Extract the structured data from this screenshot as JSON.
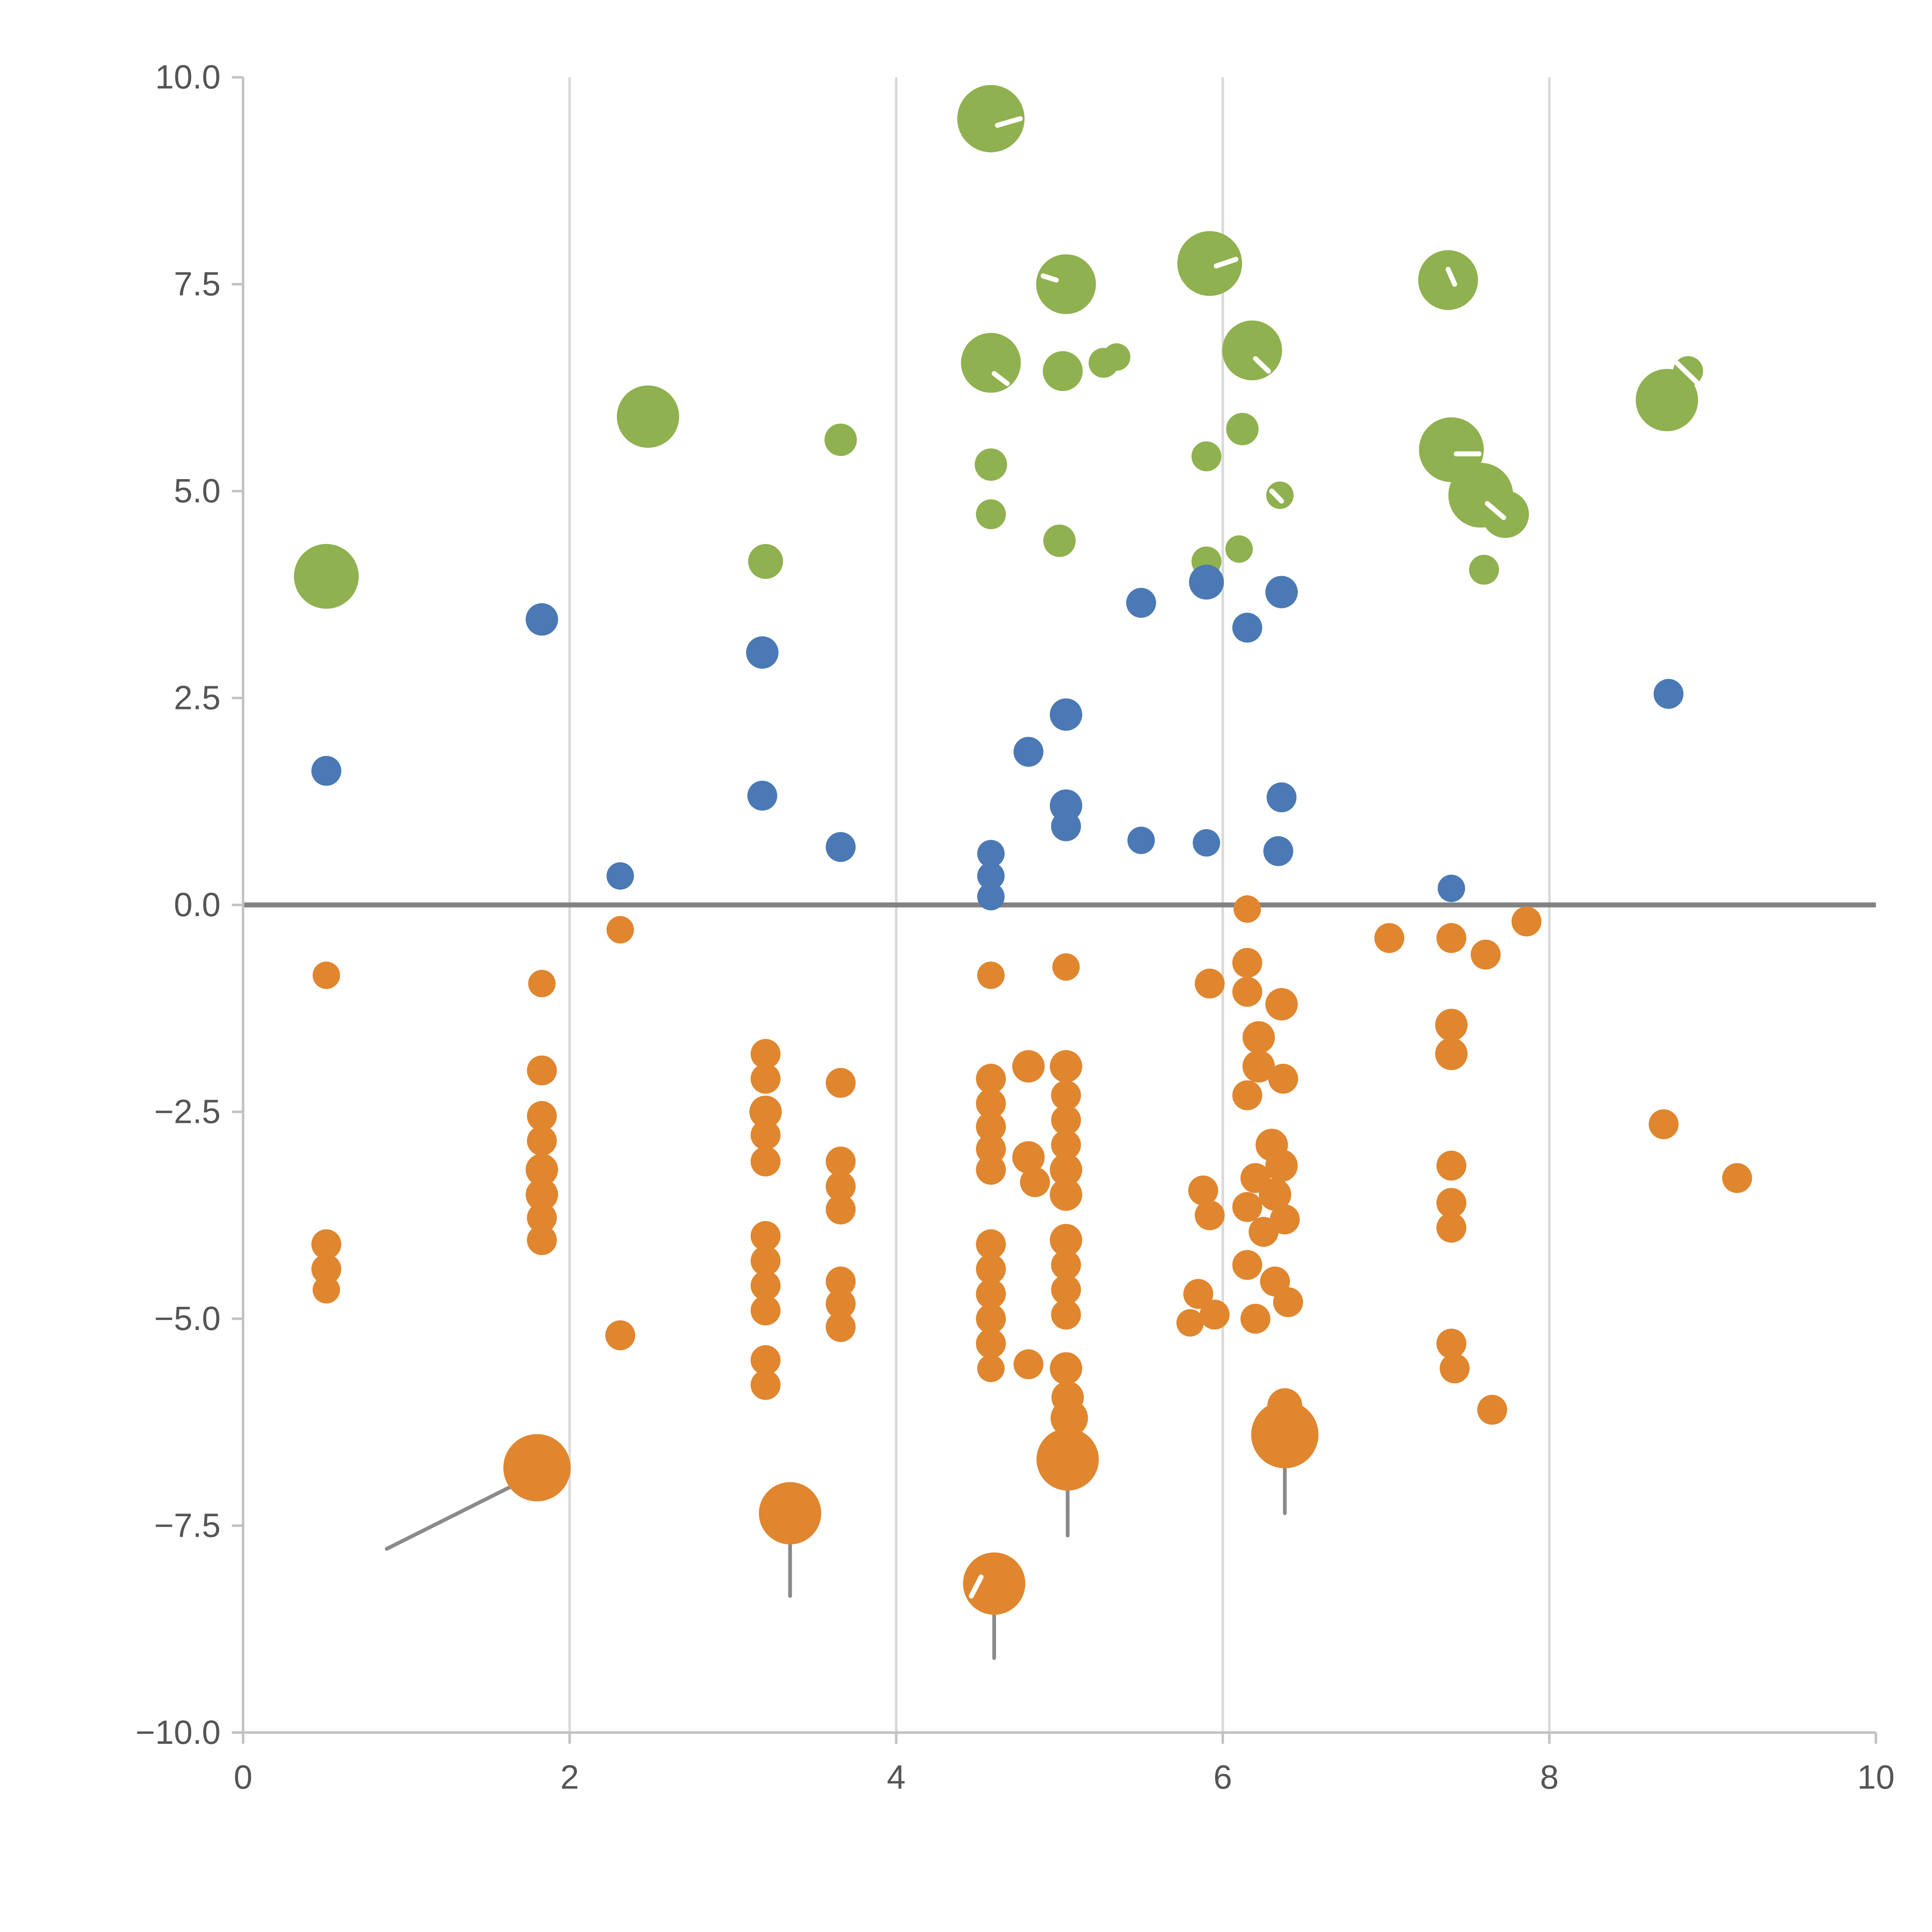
{
  "chart_data": {
    "type": "scatter",
    "title": "",
    "xlabel": "",
    "ylabel": "",
    "xlim": [
      0,
      10
    ],
    "ylim": [
      -10,
      10
    ],
    "grid": "vertical-only",
    "legend": "none",
    "x_ticks": [
      0,
      2,
      4,
      6,
      8,
      10
    ],
    "x_tick_labels": [
      "0",
      "2",
      "4",
      "6",
      "8",
      "10"
    ],
    "y_ticks": [
      -10,
      -7.5,
      -5,
      -2.5,
      0,
      2.5,
      5,
      7.5,
      10
    ],
    "y_tick_labels": [
      "−10.0",
      "−7.5",
      "−5.0",
      "−2.5",
      "0.0",
      "2.5",
      "5.0",
      "7.5",
      "10.0"
    ],
    "gridline_x_positions": [
      2,
      4,
      6,
      8
    ],
    "zero_line_y": 0,
    "colors": {
      "green": "#8fb14f",
      "blue": "#4a79b5",
      "orange": "#e0862f",
      "grid": "#d9d9d9",
      "zero_line": "#828282",
      "axis": "#c2c2c2",
      "tick_label": "#555555",
      "annotation_line": "#8a8a8a",
      "white_mark": "#ffffff"
    },
    "series": [
      {
        "name": "green",
        "points": [
          [
            4.58,
            9.5,
            27
          ],
          [
            5.04,
            7.5,
            24
          ],
          [
            5.92,
            7.75,
            26
          ],
          [
            7.38,
            7.55,
            24
          ],
          [
            4.58,
            6.55,
            24
          ],
          [
            5.02,
            6.45,
            16
          ],
          [
            5.27,
            6.55,
            12
          ],
          [
            5.35,
            6.62,
            11
          ],
          [
            6.18,
            6.7,
            24
          ],
          [
            8.72,
            6.1,
            25
          ],
          [
            8.85,
            6.45,
            12
          ],
          [
            2.48,
            5.9,
            25
          ],
          [
            3.66,
            5.62,
            13
          ],
          [
            4.58,
            5.32,
            13
          ],
          [
            6.12,
            5.75,
            13
          ],
          [
            5.9,
            5.42,
            12
          ],
          [
            7.4,
            5.5,
            26
          ],
          [
            7.58,
            4.95,
            26
          ],
          [
            7.73,
            4.72,
            19
          ],
          [
            4.58,
            4.72,
            12
          ],
          [
            5.0,
            4.4,
            13
          ],
          [
            3.2,
            4.15,
            14
          ],
          [
            0.51,
            3.97,
            26
          ],
          [
            6.35,
            4.95,
            11
          ],
          [
            5.9,
            4.15,
            12
          ],
          [
            6.1,
            4.3,
            11
          ],
          [
            7.6,
            4.05,
            12
          ]
        ]
      },
      {
        "name": "blue",
        "points": [
          [
            1.83,
            3.45,
            13
          ],
          [
            3.18,
            3.05,
            13
          ],
          [
            5.9,
            3.9,
            14
          ],
          [
            5.5,
            3.65,
            12
          ],
          [
            6.15,
            3.35,
            12
          ],
          [
            6.36,
            3.78,
            13
          ],
          [
            8.73,
            2.55,
            12
          ],
          [
            5.04,
            2.3,
            13
          ],
          [
            4.81,
            1.85,
            12
          ],
          [
            0.51,
            1.62,
            12
          ],
          [
            5.04,
            1.2,
            13
          ],
          [
            5.04,
            0.95,
            12
          ],
          [
            3.18,
            1.32,
            12
          ],
          [
            6.36,
            1.3,
            12
          ],
          [
            3.66,
            0.7,
            12
          ],
          [
            5.5,
            0.78,
            11
          ],
          [
            5.9,
            0.75,
            11
          ],
          [
            6.34,
            0.65,
            12
          ],
          [
            4.58,
            0.62,
            11
          ],
          [
            4.58,
            0.35,
            11
          ],
          [
            4.58,
            0.1,
            11
          ],
          [
            2.31,
            0.35,
            11
          ],
          [
            7.4,
            0.2,
            11
          ]
        ]
      },
      {
        "name": "orange",
        "points": [
          [
            0.51,
            -0.85,
            11
          ],
          [
            0.51,
            -4.1,
            12
          ],
          [
            0.51,
            -4.4,
            12
          ],
          [
            0.51,
            -4.65,
            11
          ],
          [
            1.83,
            -0.95,
            11
          ],
          [
            1.83,
            -2.0,
            12
          ],
          [
            1.83,
            -2.55,
            12
          ],
          [
            1.83,
            -2.85,
            12
          ],
          [
            1.83,
            -3.2,
            13
          ],
          [
            1.83,
            -3.5,
            13
          ],
          [
            1.83,
            -3.78,
            12
          ],
          [
            1.83,
            -4.05,
            12
          ],
          [
            1.8,
            -6.8,
            27
          ],
          [
            2.31,
            -0.3,
            11
          ],
          [
            2.31,
            -5.2,
            12
          ],
          [
            3.2,
            -1.8,
            12
          ],
          [
            3.2,
            -2.1,
            12
          ],
          [
            3.2,
            -2.5,
            13
          ],
          [
            3.2,
            -2.78,
            12
          ],
          [
            3.2,
            -3.1,
            12
          ],
          [
            3.2,
            -4.0,
            12
          ],
          [
            3.2,
            -4.3,
            12
          ],
          [
            3.2,
            -4.6,
            12
          ],
          [
            3.2,
            -4.9,
            12
          ],
          [
            3.2,
            -5.5,
            12
          ],
          [
            3.2,
            -5.8,
            12
          ],
          [
            3.35,
            -7.35,
            25
          ],
          [
            3.66,
            -2.15,
            12
          ],
          [
            3.66,
            -3.1,
            12
          ],
          [
            3.66,
            -3.4,
            12
          ],
          [
            3.66,
            -3.68,
            12
          ],
          [
            3.66,
            -4.55,
            12
          ],
          [
            3.66,
            -4.82,
            12
          ],
          [
            3.66,
            -5.1,
            12
          ],
          [
            4.58,
            -0.85,
            11
          ],
          [
            4.58,
            -2.1,
            12
          ],
          [
            4.58,
            -2.4,
            12
          ],
          [
            4.58,
            -2.68,
            12
          ],
          [
            4.58,
            -2.95,
            12
          ],
          [
            4.58,
            -3.2,
            12
          ],
          [
            4.58,
            -4.1,
            12
          ],
          [
            4.58,
            -4.4,
            12
          ],
          [
            4.58,
            -4.7,
            12
          ],
          [
            4.58,
            -5.0,
            12
          ],
          [
            4.58,
            -5.3,
            12
          ],
          [
            4.58,
            -5.6,
            11
          ],
          [
            4.6,
            -8.2,
            25
          ],
          [
            4.81,
            -1.95,
            13
          ],
          [
            4.81,
            -3.05,
            13
          ],
          [
            4.85,
            -3.35,
            12
          ],
          [
            4.81,
            -5.55,
            12
          ],
          [
            5.04,
            -0.75,
            11
          ],
          [
            5.04,
            -1.95,
            13
          ],
          [
            5.04,
            -2.3,
            12
          ],
          [
            5.04,
            -2.6,
            12
          ],
          [
            5.04,
            -2.9,
            12
          ],
          [
            5.04,
            -3.2,
            13
          ],
          [
            5.04,
            -3.5,
            13
          ],
          [
            5.04,
            -4.05,
            13
          ],
          [
            5.04,
            -4.35,
            12
          ],
          [
            5.04,
            -4.65,
            12
          ],
          [
            5.04,
            -4.95,
            12
          ],
          [
            5.04,
            -5.6,
            13
          ],
          [
            5.05,
            -5.95,
            13
          ],
          [
            5.06,
            -6.2,
            15
          ],
          [
            5.05,
            -6.7,
            25
          ],
          [
            5.92,
            -0.95,
            12
          ],
          [
            5.88,
            -3.45,
            12
          ],
          [
            5.92,
            -3.75,
            12
          ],
          [
            5.85,
            -4.7,
            12
          ],
          [
            5.95,
            -4.95,
            12
          ],
          [
            5.8,
            -5.05,
            11
          ],
          [
            6.15,
            -0.05,
            11
          ],
          [
            6.15,
            -0.7,
            12
          ],
          [
            6.15,
            -1.05,
            12
          ],
          [
            6.36,
            -1.2,
            13
          ],
          [
            6.22,
            -1.6,
            13
          ],
          [
            6.22,
            -1.95,
            13
          ],
          [
            6.37,
            -2.1,
            12
          ],
          [
            6.15,
            -2.3,
            12
          ],
          [
            6.3,
            -2.9,
            13
          ],
          [
            6.36,
            -3.15,
            13
          ],
          [
            6.2,
            -3.3,
            12
          ],
          [
            6.32,
            -3.5,
            13
          ],
          [
            6.15,
            -3.65,
            12
          ],
          [
            6.38,
            -3.8,
            12
          ],
          [
            6.25,
            -3.95,
            12
          ],
          [
            6.15,
            -4.35,
            12
          ],
          [
            6.32,
            -4.55,
            12
          ],
          [
            6.4,
            -4.8,
            12
          ],
          [
            6.2,
            -5.0,
            12
          ],
          [
            6.38,
            -6.05,
            14
          ],
          [
            6.38,
            -6.4,
            27
          ],
          [
            7.02,
            -0.4,
            12
          ],
          [
            7.4,
            -0.4,
            12
          ],
          [
            7.61,
            -0.6,
            12
          ],
          [
            7.86,
            -0.2,
            12
          ],
          [
            7.4,
            -1.45,
            13
          ],
          [
            7.4,
            -1.8,
            13
          ],
          [
            7.4,
            -3.15,
            12
          ],
          [
            7.4,
            -3.6,
            12
          ],
          [
            7.4,
            -3.9,
            12
          ],
          [
            7.4,
            -5.3,
            12
          ],
          [
            7.42,
            -5.6,
            12
          ],
          [
            7.65,
            -6.1,
            12
          ],
          [
            8.7,
            -2.65,
            12
          ],
          [
            9.15,
            -3.3,
            12
          ]
        ]
      }
    ],
    "annotations": {
      "gray_lines": [
        [
          0.88,
          -7.78,
          1.72,
          -6.95
        ],
        [
          3.35,
          -7.45,
          3.35,
          -8.35
        ],
        [
          5.05,
          -6.8,
          5.05,
          -7.62
        ],
        [
          6.38,
          -6.5,
          6.38,
          -7.35
        ],
        [
          4.6,
          -8.3,
          4.6,
          -9.1
        ]
      ],
      "white_marks": [
        [
          4.62,
          9.42,
          4.76,
          9.5
        ],
        [
          4.9,
          7.6,
          4.98,
          7.55
        ],
        [
          5.96,
          7.72,
          6.08,
          7.8
        ],
        [
          7.38,
          7.68,
          7.42,
          7.5
        ],
        [
          4.6,
          6.42,
          4.68,
          6.3
        ],
        [
          6.2,
          6.6,
          6.28,
          6.45
        ],
        [
          7.43,
          5.45,
          7.57,
          5.45
        ],
        [
          7.62,
          4.85,
          7.72,
          4.68
        ],
        [
          6.3,
          5.0,
          6.36,
          4.88
        ],
        [
          8.78,
          6.55,
          8.9,
          6.32
        ],
        [
          4.46,
          -8.35,
          4.52,
          -8.12
        ]
      ]
    }
  }
}
